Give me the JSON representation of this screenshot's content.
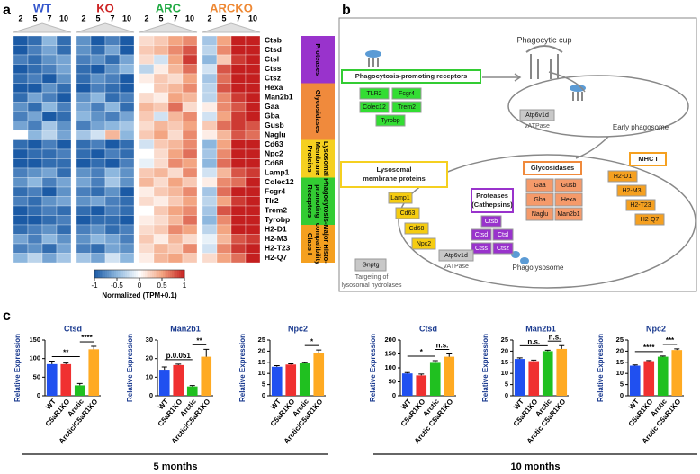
{
  "panel_labels": [
    "a",
    "b",
    "c"
  ],
  "time_labels": [
    "5 months",
    "10 months"
  ],
  "chart_data": [
    {
      "type": "heatmap",
      "column_groups": [
        {
          "name": "WT",
          "color": "#3355cc"
        },
        {
          "name": "KO",
          "color": "#cc2222"
        },
        {
          "name": "ARC",
          "color": "#22aa44"
        },
        {
          "name": "ARCKO",
          "color": "#ee8833"
        }
      ],
      "columns": [
        "2",
        "5",
        "7",
        "10",
        "2",
        "5",
        "7",
        "10",
        "2",
        "5",
        "7",
        "10",
        "2",
        "5",
        "7",
        "10"
      ],
      "rows": [
        "Ctsb",
        "Ctsd",
        "Ctsl",
        "Ctss",
        "Ctsz",
        "Hexa",
        "Man2b1",
        "Gaa",
        "Gba",
        "Gusb",
        "Naglu",
        "Cd63",
        "Npc2",
        "Cd68",
        "Lamp1",
        "Colec12",
        "Fcgr4",
        "Tlr2",
        "Trem2",
        "Tyrobp",
        "H2-D1",
        "H2-M3",
        "H2-T23",
        "H2-Q7"
      ],
      "row_groups": [
        {
          "name": [
            "Proteases"
          ],
          "color": "#9933cc",
          "size": 5
        },
        {
          "name": [
            "Glycosidases"
          ],
          "color": "#f08a3c",
          "size": 6
        },
        {
          "name": [
            "Lysosomal",
            "Membrane",
            "Proteins"
          ],
          "color": "#f5d020",
          "size": 4
        },
        {
          "name": [
            "Phagocytosis-",
            "promoting",
            "Receptors"
          ],
          "color": "#33cc33",
          "size": 5
        },
        {
          "name": [
            "Major Histo-",
            "compatibility",
            "Class I"
          ],
          "color": "#f5a020",
          "size": 4
        }
      ],
      "values": [
        [
          -1,
          -0.9,
          -0.5,
          -0.9,
          -0.7,
          -1,
          -0.8,
          -1,
          0.2,
          0.3,
          0.5,
          0.6,
          -0.4,
          0.5,
          1,
          1
        ],
        [
          -1,
          -0.8,
          -0.6,
          -0.9,
          -0.7,
          -0.9,
          -0.6,
          -1,
          0.3,
          0.4,
          0.6,
          0.8,
          -0.3,
          0.6,
          1,
          1
        ],
        [
          -0.8,
          -0.9,
          -0.7,
          -0.6,
          -0.8,
          -0.7,
          -0.9,
          -0.6,
          0.2,
          -0.2,
          0.5,
          0.9,
          -0.5,
          0.3,
          0.9,
          1
        ],
        [
          -1,
          -0.9,
          -0.8,
          -0.6,
          -0.9,
          -1,
          -0.7,
          -0.5,
          -0.3,
          0.1,
          0.4,
          0.7,
          -0.2,
          0.8,
          1,
          1
        ],
        [
          -0.9,
          -0.8,
          -1,
          -0.7,
          -0.9,
          -0.7,
          -0.8,
          -1,
          0.1,
          0.3,
          0.2,
          0.5,
          -0.4,
          0.7,
          1,
          1
        ],
        [
          -1,
          -1,
          -0.7,
          -0.9,
          -1,
          -0.8,
          -0.9,
          -1,
          0,
          0.3,
          0.4,
          0.6,
          -0.3,
          0.8,
          1,
          1
        ],
        [
          -0.9,
          -0.6,
          -0.8,
          -1,
          -0.7,
          -0.5,
          -0.9,
          -0.8,
          0.2,
          0.1,
          0.5,
          0.4,
          -0.3,
          0.6,
          0.9,
          1
        ],
        [
          -0.7,
          -0.9,
          -0.5,
          -0.8,
          -0.6,
          -0.8,
          -0.5,
          -0.9,
          0.4,
          0.3,
          0.7,
          0.2,
          0.1,
          0.6,
          0.8,
          1
        ],
        [
          -0.8,
          -0.6,
          -1,
          -0.9,
          -0.5,
          -0.7,
          -0.8,
          -0.6,
          0.3,
          -0.2,
          0.4,
          0.6,
          -0.2,
          0.5,
          0.9,
          1
        ],
        [
          -0.6,
          -0.8,
          -0.4,
          -0.7,
          -0.8,
          -0.6,
          -0.5,
          -0.4,
          0.2,
          0.4,
          0.3,
          0.5,
          0.3,
          0.7,
          0.9,
          0.8
        ],
        [
          0,
          -0.5,
          -0.3,
          -0.6,
          -0.4,
          -0.2,
          0.4,
          -0.5,
          0.3,
          0.5,
          0.2,
          0.6,
          0.1,
          0.4,
          0.8,
          0.7
        ],
        [
          -0.9,
          -1,
          -0.8,
          -1,
          -0.9,
          -0.8,
          -1,
          -0.9,
          -0.2,
          0.3,
          0.4,
          0.6,
          -0.5,
          0.5,
          1,
          1
        ],
        [
          -1,
          -0.9,
          -0.9,
          -0.8,
          -0.9,
          -1,
          -0.8,
          -0.9,
          0,
          0.2,
          0.5,
          0.7,
          -0.4,
          0.6,
          1,
          1
        ],
        [
          -1,
          -1,
          -0.9,
          -0.9,
          -1,
          -0.9,
          -1,
          -0.8,
          -0.1,
          0.2,
          0.6,
          0.5,
          -0.5,
          0.7,
          1,
          1
        ],
        [
          -0.8,
          -0.7,
          -0.6,
          -0.9,
          -0.7,
          -0.8,
          -0.5,
          -0.7,
          0.3,
          0.4,
          0.2,
          0.6,
          -0.2,
          0.4,
          0.8,
          0.9
        ],
        [
          -0.7,
          -0.5,
          -0.8,
          -0.6,
          -0.6,
          -0.8,
          -0.4,
          -0.7,
          0.4,
          0.2,
          0.5,
          0.3,
          0.1,
          0.6,
          0.7,
          1
        ],
        [
          -0.9,
          -0.8,
          -1,
          -0.7,
          -0.8,
          -0.9,
          -0.7,
          -1,
          0.1,
          0.3,
          0.4,
          0.6,
          -0.4,
          0.7,
          1,
          1
        ],
        [
          -0.8,
          -0.9,
          -0.7,
          -0.6,
          -0.7,
          -0.6,
          -0.8,
          -0.9,
          0.2,
          0.1,
          0.3,
          0.5,
          -0.3,
          0.5,
          0.9,
          1
        ],
        [
          -1,
          -0.9,
          -0.8,
          -0.9,
          -0.9,
          -1,
          -0.8,
          -0.9,
          0,
          0.3,
          0.5,
          0.6,
          -0.4,
          0.8,
          1,
          1
        ],
        [
          -1,
          -1,
          -0.9,
          -0.8,
          -1,
          -0.9,
          -0.9,
          -1,
          0.1,
          0.2,
          0.4,
          0.7,
          -0.5,
          0.6,
          1,
          1
        ],
        [
          -0.9,
          -0.8,
          -0.7,
          -0.9,
          -0.8,
          -0.7,
          -0.9,
          -0.8,
          0.2,
          0.3,
          0.6,
          0.5,
          -0.3,
          0.5,
          1,
          1
        ],
        [
          -0.6,
          -0.8,
          -0.5,
          -0.7,
          -0.7,
          -0.5,
          -0.6,
          -0.8,
          0.3,
          0.1,
          0.4,
          0.2,
          -0.1,
          0.4,
          0.8,
          0.9
        ],
        [
          -0.8,
          -0.7,
          -0.9,
          -0.6,
          -0.8,
          -0.9,
          -0.6,
          -0.7,
          0.2,
          0.4,
          0.3,
          0.6,
          -0.2,
          0.6,
          0.9,
          1
        ],
        [
          -0.5,
          -0.3,
          -0.6,
          -0.4,
          -0.4,
          -0.6,
          -0.2,
          -0.5,
          0.1,
          0.4,
          0.5,
          0.3,
          0.2,
          0.5,
          0.7,
          1
        ]
      ],
      "colorbar": {
        "label": "Normalized (TPM+0.1)",
        "lim": [
          -1,
          1
        ],
        "ticks": [
          -1,
          -0.5,
          0,
          0.5,
          1
        ],
        "colors": [
          "#1b5aa5",
          "#8db7de",
          "#ffffff",
          "#f3a582",
          "#c41f1f"
        ]
      }
    },
    {
      "type": "bar",
      "title": "Ctsd",
      "ylabel": "Relative Expression",
      "categories": [
        "WT",
        "C5aR1KO",
        "Arctic",
        "Arctic/C5aR1KO"
      ],
      "colors": [
        "#2050f0",
        "#f03030",
        "#20c020",
        "#ffaa22"
      ],
      "values": [
        85,
        85,
        28,
        125
      ],
      "errors": [
        8,
        3,
        5,
        8
      ],
      "ylim": [
        0,
        150
      ],
      "yticks": [
        0,
        50,
        100,
        150
      ],
      "annotations": [
        {
          "text": "**",
          "between": [
            0,
            2
          ]
        },
        {
          "text": "****",
          "between": [
            2,
            3
          ]
        }
      ]
    },
    {
      "type": "bar",
      "title": "Man2b1",
      "ylabel": "Relative Expression",
      "categories": [
        "WT",
        "C5aR1KO",
        "Arctic",
        "Arctic/C5aR1KO"
      ],
      "colors": [
        "#2050f0",
        "#f03030",
        "#20c020",
        "#ffaa22"
      ],
      "values": [
        14,
        16.5,
        5,
        21
      ],
      "errors": [
        1.5,
        0.5,
        0.5,
        4
      ],
      "ylim": [
        0,
        30
      ],
      "yticks": [
        0,
        10,
        20,
        30
      ],
      "annotations": [
        {
          "text": "p.0.051",
          "between": [
            0,
            2
          ]
        },
        {
          "text": "**",
          "between": [
            2,
            3
          ]
        }
      ]
    },
    {
      "type": "bar",
      "title": "Npc2",
      "ylabel": "Relative Expression",
      "categories": [
        "WT",
        "C5aR1KO",
        "Arctic",
        "Arctic/C5aR1KO"
      ],
      "colors": [
        "#2050f0",
        "#f03030",
        "#20c020",
        "#ffaa22"
      ],
      "values": [
        13,
        14,
        14.5,
        19
      ],
      "errors": [
        0.5,
        0.3,
        0.3,
        1.5
      ],
      "ylim": [
        0,
        25
      ],
      "yticks": [
        0,
        5,
        10,
        15,
        20,
        25
      ],
      "annotations": [
        {
          "text": "*",
          "between": [
            2,
            3
          ]
        }
      ]
    },
    {
      "type": "bar",
      "title": "Ctsd",
      "ylabel": "Relative Expression",
      "categories": [
        "WT",
        "C5aR1KO",
        "Arctic",
        "Arctic C5aR1KO"
      ],
      "colors": [
        "#2050f0",
        "#f03030",
        "#20c020",
        "#ffaa22"
      ],
      "values": [
        80,
        73,
        118,
        140
      ],
      "errors": [
        3,
        5,
        8,
        10
      ],
      "ylim": [
        0,
        200
      ],
      "yticks": [
        0,
        50,
        100,
        150,
        200
      ],
      "annotations": [
        {
          "text": "*",
          "between": [
            0,
            2
          ]
        },
        {
          "text": "n.s.",
          "between": [
            2,
            3
          ]
        }
      ]
    },
    {
      "type": "bar",
      "title": "Man2b1",
      "ylabel": "Relative Expression",
      "categories": [
        "WT",
        "C5aR1KO",
        "Arctic",
        "Arctic C5aR1KO"
      ],
      "colors": [
        "#2050f0",
        "#f03030",
        "#20c020",
        "#ffaa22"
      ],
      "values": [
        16.5,
        15.5,
        20,
        21
      ],
      "errors": [
        0.5,
        0.5,
        0.4,
        1.5
      ],
      "ylim": [
        0,
        25
      ],
      "yticks": [
        0,
        5,
        10,
        15,
        20,
        25
      ],
      "annotations": [
        {
          "text": "n.s.",
          "between": [
            0,
            2
          ]
        },
        {
          "text": "n.s.",
          "between": [
            2,
            3
          ]
        }
      ]
    },
    {
      "type": "bar",
      "title": "Npc2",
      "ylabel": "Relative Expression",
      "categories": [
        "WT",
        "C5aR1KO",
        "Arctic",
        "Arctic C5aR1KO"
      ],
      "colors": [
        "#2050f0",
        "#f03030",
        "#20c020",
        "#ffaa22"
      ],
      "values": [
        13.5,
        15.5,
        17.5,
        20.5
      ],
      "errors": [
        0.3,
        0.3,
        0.3,
        0.5
      ],
      "ylim": [
        0,
        25
      ],
      "yticks": [
        0,
        5,
        10,
        15,
        20,
        25
      ],
      "annotations": [
        {
          "text": "****",
          "between": [
            0,
            2
          ]
        },
        {
          "text": "***",
          "between": [
            2,
            3
          ]
        }
      ]
    }
  ],
  "diagram": {
    "phagocytic_cup": "Phagocytic cup",
    "receptors": {
      "title": [
        "Phagocytosis-promoting receptors"
      ],
      "items": [
        "TLR2",
        "Fcgr4",
        "Colec12",
        "Trem2",
        "Tyrobp"
      ]
    },
    "vatpase": [
      {
        "name": "Atp6v1d",
        "label": "vATPase"
      },
      {
        "name": "Atp6v1d",
        "label": "vATPase"
      }
    ],
    "early_phagosome": "Early phagosome",
    "membrane": {
      "title": [
        "Lysosomal",
        "membrane proteins"
      ],
      "items": [
        "Lamp1",
        "Cd63",
        "Cd68",
        "Npc2"
      ]
    },
    "proteases": {
      "title": [
        "Proteases",
        "(Cathepsins)"
      ],
      "items": [
        "Ctsb",
        "Ctsd",
        "Ctsl",
        "Ctss",
        "Ctsz"
      ]
    },
    "glycosidases": {
      "title": [
        "Glycosidases"
      ],
      "items": [
        "Gaa",
        "Gusb",
        "Gba",
        "Hexa",
        "Naglu",
        "Man2b1"
      ]
    },
    "mhc": {
      "title": [
        "MHC I"
      ],
      "items": [
        "H2-D1",
        "H2-M3",
        "H2-T23",
        "H2-Q7"
      ]
    },
    "phagolysosome": "Phagolysosome",
    "gnptg": {
      "name": "Gnptg",
      "note": [
        "Targeting of",
        "lysosomal hydrolases"
      ]
    }
  }
}
